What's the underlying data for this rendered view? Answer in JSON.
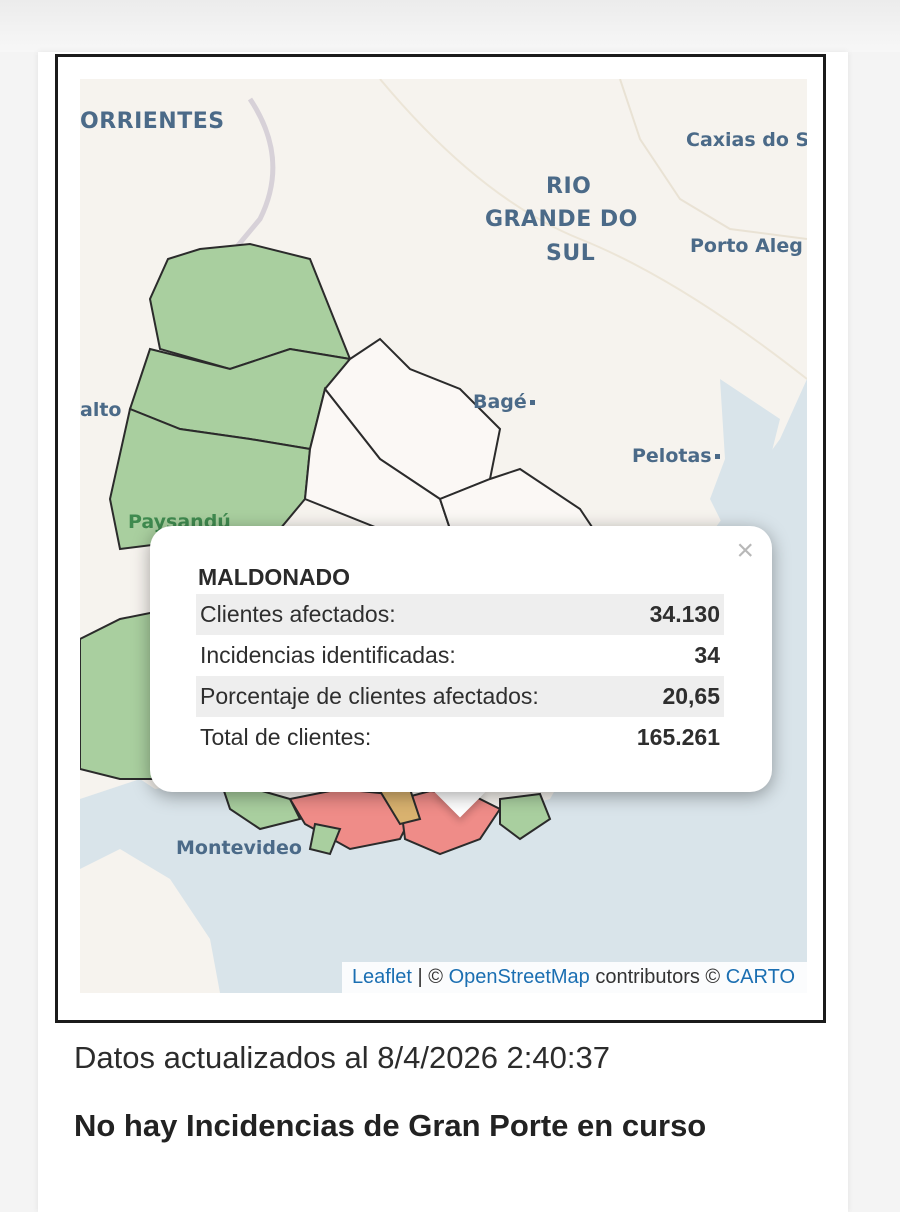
{
  "map": {
    "labels": {
      "corrientes": "ORRIENTES",
      "rio_grande_1": "RIO",
      "rio_grande_2": "GRANDE DO",
      "rio_grande_3": "SUL",
      "caxias": "Caxias do S",
      "porto_alegre": "Porto Aleg",
      "bage": "Bagé",
      "pelotas": "Pelotas",
      "salto": "alto",
      "paysandu": "Paysandú",
      "montevideo": "Montevideo"
    },
    "attribution": {
      "leaflet": "Leaflet",
      "separator": " | © ",
      "osm": "OpenStreetMap",
      "contributors": " contributors © ",
      "carto": "CARTO"
    },
    "colors": {
      "green_region": "#a9cf9f",
      "red_region": "#ef8c88",
      "white_region": "#fbf8f5",
      "land": "#f6f3ee",
      "water": "#d9e4ea"
    }
  },
  "popup": {
    "title": "MALDONADO",
    "close_icon": "close-icon",
    "rows": [
      {
        "label": "Clientes afectados:",
        "value": "34.130"
      },
      {
        "label": "Incidencias identificadas:",
        "value": "34"
      },
      {
        "label": "Porcentaje de clientes afectados:",
        "value": "20,65"
      },
      {
        "label": "Total de clientes:",
        "value": "165.261"
      }
    ]
  },
  "footer": {
    "updated": "Datos actualizados al 8/4/2026 2:40:37",
    "notice": "No hay Incidencias de Gran Porte en curso"
  }
}
